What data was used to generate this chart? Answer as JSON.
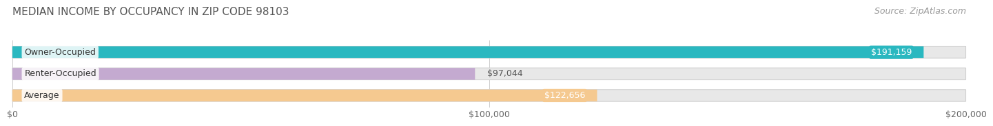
{
  "title": "MEDIAN INCOME BY OCCUPANCY IN ZIP CODE 98103",
  "source": "Source: ZipAtlas.com",
  "categories": [
    "Owner-Occupied",
    "Renter-Occupied",
    "Average"
  ],
  "values": [
    191159,
    97044,
    122656
  ],
  "bar_colors": [
    "#2ab8c0",
    "#c4aad0",
    "#f5c990"
  ],
  "value_labels": [
    "$191,159",
    "$97,044",
    "$122,656"
  ],
  "value_label_inside": [
    true,
    false,
    true
  ],
  "xlim": [
    0,
    200000
  ],
  "xticks": [
    0,
    100000,
    200000
  ],
  "xticklabels": [
    "$0",
    "$100,000",
    "$200,000"
  ],
  "bg_color": "#ffffff",
  "bar_bg_color": "#e8e8e8",
  "bar_border_color": "#d0d0d0",
  "title_color": "#555555",
  "source_color": "#999999",
  "title_fontsize": 11,
  "source_fontsize": 9,
  "label_fontsize": 9,
  "value_fontsize": 9,
  "tick_fontsize": 9
}
